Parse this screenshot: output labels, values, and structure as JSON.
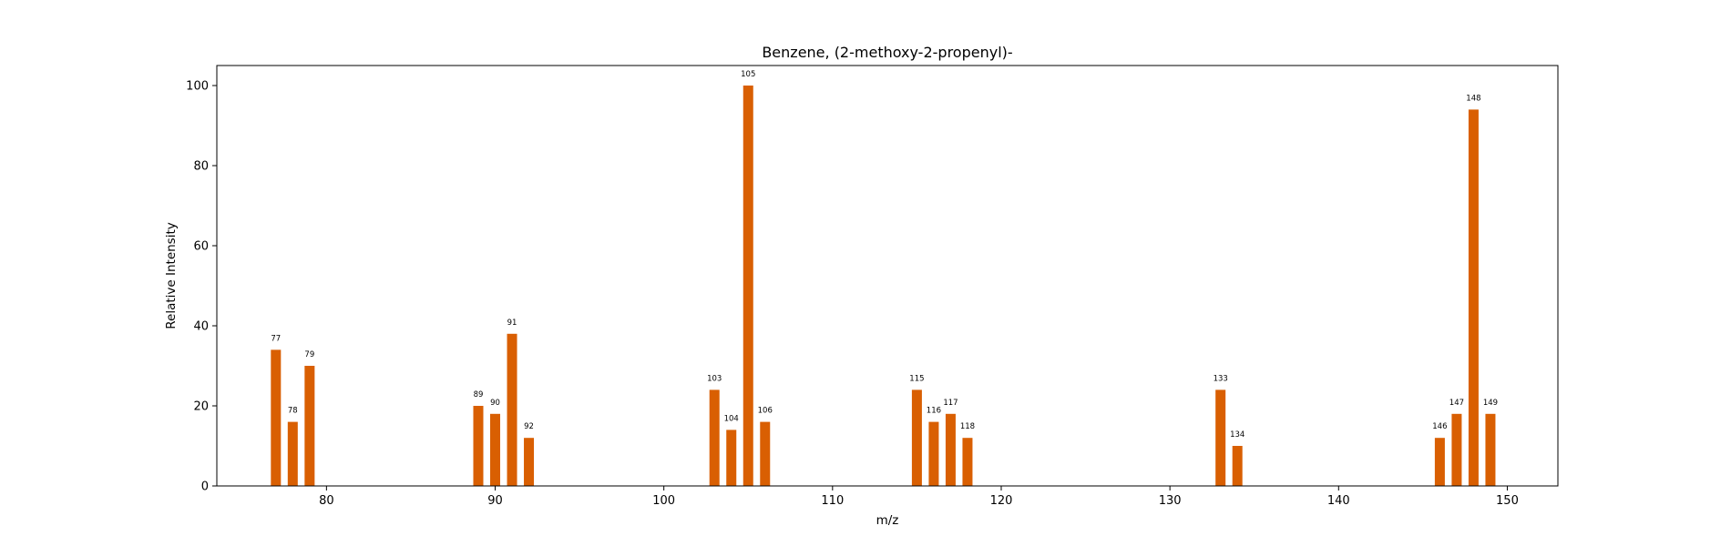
{
  "chart_data": {
    "type": "bar",
    "title": "Benzene, (2-methoxy-2-propenyl)-",
    "xlabel": "m/z",
    "ylabel": "Relative Intensity",
    "xlim": [
      73.5,
      153.0
    ],
    "ylim": [
      0,
      105
    ],
    "xticks": [
      80,
      90,
      100,
      110,
      120,
      130,
      140,
      150
    ],
    "yticks": [
      0,
      20,
      40,
      60,
      80,
      100
    ],
    "grid": false,
    "bar_color": "#d95f02",
    "x": [
      77,
      78,
      79,
      89,
      90,
      91,
      92,
      103,
      104,
      105,
      106,
      115,
      116,
      117,
      118,
      133,
      134,
      146,
      147,
      148,
      149
    ],
    "values": [
      34,
      16,
      30,
      20,
      18,
      38,
      12,
      24,
      14,
      100,
      16,
      24,
      16,
      18,
      12,
      24,
      10,
      12,
      18,
      94,
      18
    ],
    "labels": [
      "77",
      "78",
      "79",
      "89",
      "90",
      "91",
      "92",
      "103",
      "104",
      "105",
      "106",
      "115",
      "116",
      "117",
      "118",
      "133",
      "134",
      "146",
      "147",
      "148",
      "149"
    ]
  }
}
